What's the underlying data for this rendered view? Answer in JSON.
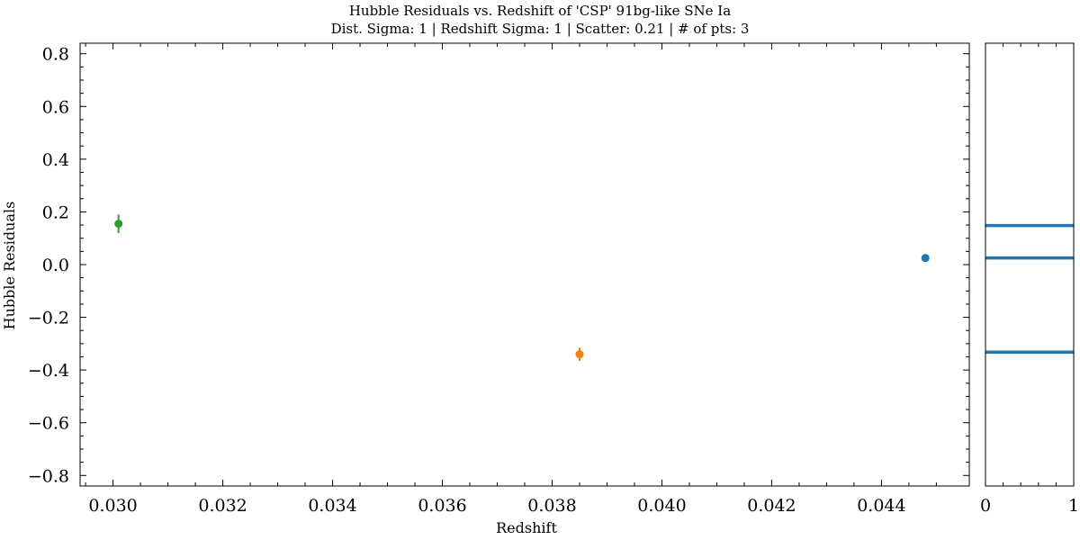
{
  "chart_data": [
    {
      "type": "scatter",
      "title": "Hubble Residuals vs. Redshift of 'CSP' 91bg-like SNe Ia",
      "subtitle": "Dist. Sigma: 1 | Redshift Sigma: 1 | Scatter: 0.21 | # of pts: 3",
      "xlabel": "Redshift",
      "ylabel": "Hubble Residuals",
      "xlim": [
        0.0294,
        0.0456
      ],
      "ylim": [
        -0.84,
        0.84
      ],
      "x_ticks": [
        0.03,
        0.032,
        0.034,
        0.036,
        0.038,
        0.04,
        0.042,
        0.044
      ],
      "x_tick_labels": [
        "0.030",
        "0.032",
        "0.034",
        "0.036",
        "0.038",
        "0.040",
        "0.042",
        "0.044"
      ],
      "y_ticks": [
        -0.8,
        -0.6,
        -0.4,
        -0.2,
        0.0,
        0.2,
        0.4,
        0.6,
        0.8
      ],
      "y_tick_labels": [
        "−0.8",
        "−0.6",
        "−0.4",
        "−0.2",
        "0.0",
        "0.2",
        "0.4",
        "0.6",
        "0.8"
      ],
      "grid": false,
      "points": [
        {
          "x": 0.0301,
          "y": 0.155,
          "yerr": 0.035,
          "color": "#2ca02c"
        },
        {
          "x": 0.0385,
          "y": -0.34,
          "yerr": 0.025,
          "color": "#ff7f0e"
        },
        {
          "x": 0.0448,
          "y": 0.025,
          "yerr": 0.0,
          "color": "#1f77b4"
        }
      ]
    },
    {
      "type": "line",
      "xlim": [
        0,
        1
      ],
      "ylim": [
        -0.84,
        0.84
      ],
      "x_ticks": [
        0,
        1
      ],
      "x_tick_labels": [
        "0",
        "1"
      ],
      "color": "#1f77b4",
      "hlines": [
        0.148,
        0.025,
        -0.332
      ]
    }
  ]
}
